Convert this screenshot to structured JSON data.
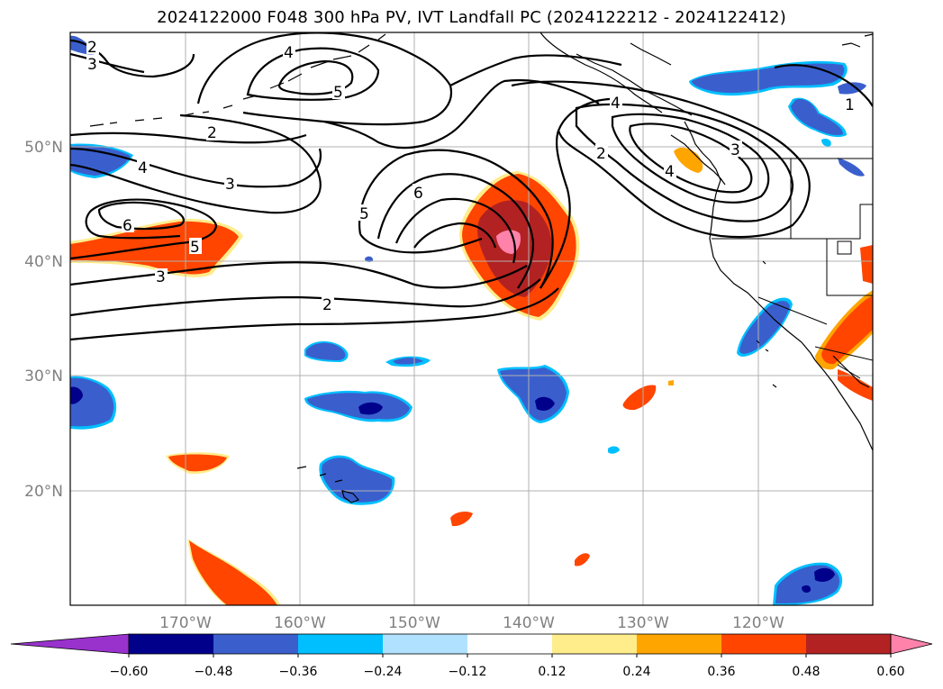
{
  "title": "2024122000 F048 300 hPa PV, IVT Landfall PC (2024122212 - 2024122412)",
  "axes": {
    "lon_labels": [
      "170°W",
      "160°W",
      "150°W",
      "140°W",
      "130°W",
      "120°W"
    ],
    "lat_labels": [
      "50°N",
      "40°N",
      "30°N",
      "20°N"
    ]
  },
  "contour_labels": [
    "2",
    "3",
    "4",
    "5",
    "2",
    "3",
    "4",
    "6",
    "5",
    "3",
    "2",
    "5",
    "6",
    "4",
    "2",
    "3",
    "4",
    "1"
  ],
  "colorbar": {
    "ticks": [
      "−0.60",
      "−0.48",
      "−0.36",
      "−0.24",
      "−0.12",
      "0.12",
      "0.24",
      "0.36",
      "0.48",
      "0.60"
    ],
    "colors": [
      "#9932cc",
      "#00008b",
      "#3a5fcd",
      "#00bfff",
      "#b0e2ff",
      "#ffffff",
      "#ffec8b",
      "#ffa500",
      "#ff4500",
      "#b22222",
      "#ff82ab"
    ]
  },
  "palette": {
    "neg_dark": "#00008b",
    "neg_mid": "#3a5fcd",
    "neg_light": "#00bfff",
    "pos_light": "#ffec8b",
    "pos_mid": "#ff4500",
    "pos_dark": "#b22222",
    "pos_max": "#ff82ab"
  }
}
